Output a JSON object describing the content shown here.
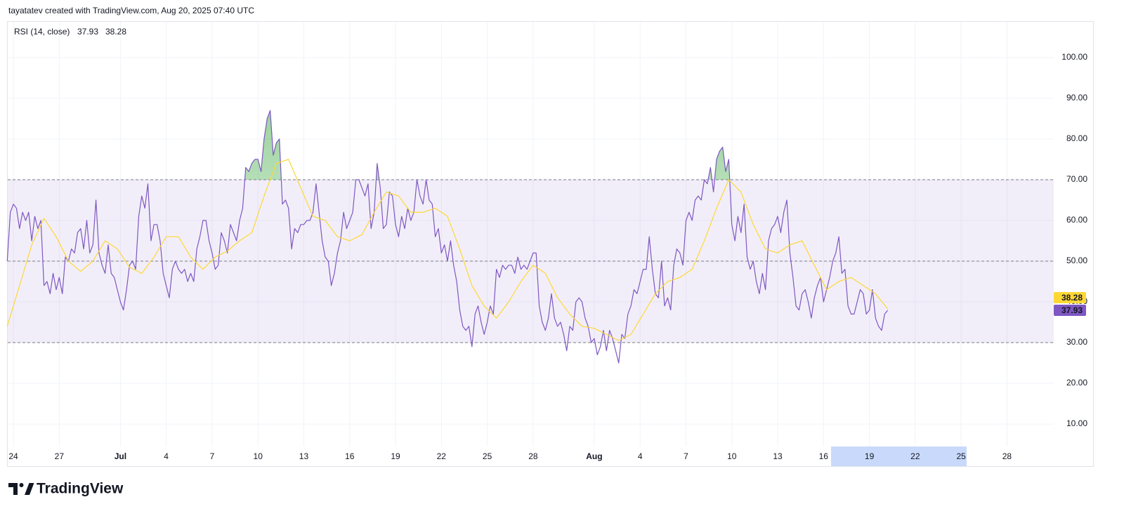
{
  "header": "tayatatev created with TradingView.com, Aug 20, 2025 07:40 UTC",
  "brand": "TradingView",
  "chart_data": {
    "type": "line",
    "indicator": "RSI (14, close)",
    "x": [
      23.6,
      23.8,
      24,
      24.2,
      24.4,
      24.6,
      24.8,
      25,
      25.2,
      25.4,
      25.6,
      25.8,
      26,
      26.2,
      26.4,
      26.6,
      26.8,
      27,
      27.2,
      27.4,
      27.6,
      27.8,
      28,
      28.2,
      28.4,
      28.6,
      28.8,
      29,
      29.2,
      29.4,
      29.6,
      29.8,
      30,
      30.2,
      30.4,
      30.6,
      30.8,
      31,
      31.2,
      31.4,
      31.6,
      31.8,
      32,
      32.2,
      32.4,
      32.6,
      32.8,
      33,
      33.2,
      33.4,
      33.6,
      33.8,
      34,
      34.2,
      34.4,
      34.6,
      34.8,
      35,
      35.2,
      35.4,
      35.6,
      35.8,
      36,
      36.2,
      36.4,
      36.6,
      36.8,
      37,
      37.2,
      37.4,
      37.6,
      37.8,
      38,
      38.2,
      38.4,
      38.6,
      38.8,
      39,
      39.2,
      39.4,
      39.6,
      39.8,
      40,
      40.2,
      40.4,
      40.6,
      40.8,
      41,
      41.2,
      41.4,
      41.6,
      41.8,
      42,
      42.2,
      42.4,
      42.6,
      42.8,
      43,
      43.2,
      43.4,
      43.6,
      43.8,
      44,
      44.2,
      44.4,
      44.6,
      44.8,
      45,
      45.2,
      45.4,
      45.6,
      45.8,
      46,
      46.2,
      46.4,
      46.6,
      46.8,
      47,
      47.2,
      47.4,
      47.6,
      47.8,
      48,
      48.2,
      48.4,
      48.6,
      48.8,
      49,
      49.2,
      49.4,
      49.6,
      49.8,
      50,
      50.2,
      50.4,
      50.6,
      50.8,
      51,
      51.2,
      51.4,
      51.6,
      51.8,
      52,
      52.2,
      52.4,
      52.6,
      52.8,
      53,
      53.2,
      53.4,
      53.6,
      53.8,
      54,
      54.2,
      54.4,
      54.6,
      54.8,
      55,
      55.2,
      55.4,
      55.6,
      55.8,
      56,
      56.2,
      56.4,
      56.6,
      56.8,
      57,
      57.2,
      57.4,
      57.6,
      57.8,
      58,
      58.2,
      58.4,
      58.6,
      58.8,
      59,
      59.2,
      59.4,
      59.6,
      59.8,
      60,
      60.2,
      60.4,
      60.6,
      60.8,
      61,
      61.2,
      61.4,
      61.6,
      61.8,
      62,
      62.2,
      62.4,
      62.6,
      62.8,
      63,
      63.2,
      63.4,
      63.6,
      63.8,
      64,
      64.2,
      64.4,
      64.6,
      64.8,
      65,
      65.2,
      65.4,
      65.6,
      65.8,
      66,
      66.2,
      66.4,
      66.6,
      66.8,
      67,
      67.2,
      67.4,
      67.6,
      67.8,
      68,
      68.2,
      68.4,
      68.6,
      68.8,
      69,
      69.2,
      69.4,
      69.6,
      69.8,
      70,
      70.2,
      70.4,
      70.6,
      70.8,
      71,
      71.2,
      71.4,
      71.6,
      71.8,
      72,
      72.2,
      72.4,
      72.6,
      72.8,
      73,
      73.2,
      73.4,
      73.6,
      73.8,
      74,
      74.2,
      74.4,
      74.6,
      74.8,
      75,
      75.2,
      75.4,
      75.6,
      75.8,
      76,
      76.2,
      76.4,
      76.6,
      76.8,
      77,
      77.2,
      77.4,
      77.6,
      77.8,
      78,
      78.2,
      78.4,
      78.6,
      78.8,
      79,
      79.2,
      79.4,
      79.6,
      79.8,
      80,
      80.2,
      80.4,
      80.6,
      80.8,
      81,
      81.2
    ],
    "series": [
      {
        "name": "RSI (14, close)",
        "color": "#7e57c2",
        "values": [
          50,
          62,
          64,
          63,
          58,
          62,
          60,
          62,
          55,
          61,
          58,
          60,
          44,
          45,
          42,
          47,
          43,
          46,
          42,
          51,
          50,
          53,
          52,
          57,
          58,
          53,
          60,
          52,
          54,
          65,
          52,
          49,
          47,
          54,
          47,
          46,
          43,
          40,
          38,
          43,
          49,
          50,
          48,
          61,
          66,
          63,
          69,
          55,
          59,
          59,
          55,
          47,
          44,
          41,
          48,
          50,
          48,
          47,
          48,
          45,
          47,
          45,
          53,
          56,
          60,
          60,
          55,
          52,
          48,
          49,
          57,
          55,
          52,
          59,
          57,
          55,
          60,
          63,
          73,
          72,
          74,
          75,
          75,
          72,
          80,
          85,
          87,
          76,
          79,
          80,
          64,
          65,
          63,
          53,
          58,
          57,
          59,
          59,
          60,
          60,
          62,
          69,
          62,
          55,
          51,
          50,
          44,
          47,
          52,
          55,
          62,
          58,
          60,
          62,
          70,
          70,
          68,
          66,
          69,
          58,
          62,
          74,
          68,
          58,
          59,
          67,
          66,
          59,
          56,
          61,
          58,
          63,
          60,
          62,
          70,
          66,
          64,
          70,
          65,
          64,
          56,
          58,
          52,
          54,
          50,
          55,
          49,
          45,
          38,
          34,
          33,
          34,
          29,
          37,
          39,
          35,
          32,
          35,
          39,
          37,
          48,
          46,
          49,
          48,
          49,
          49,
          47,
          51,
          48,
          49,
          48,
          50,
          52,
          52,
          39,
          35,
          33,
          36,
          42,
          36,
          34,
          35,
          32,
          28,
          34,
          33,
          40,
          41,
          40,
          36,
          34,
          30,
          31,
          27,
          29,
          33,
          28,
          33,
          31,
          28,
          25,
          32,
          31,
          37,
          39,
          43,
          42,
          45,
          48,
          48,
          56,
          48,
          42,
          41,
          50,
          39,
          41,
          38,
          49,
          53,
          52,
          49,
          60,
          62,
          60,
          65,
          66,
          65,
          70,
          69,
          73,
          67,
          75,
          77,
          78,
          72,
          75,
          59,
          55,
          61,
          57,
          64,
          51,
          48,
          50,
          45,
          42,
          47,
          43,
          55,
          58,
          59,
          61,
          57,
          62,
          65,
          52,
          46,
          39,
          38,
          42,
          43,
          40,
          36,
          41,
          44,
          46,
          40,
          43,
          46,
          50,
          52,
          56,
          47,
          48,
          39,
          37,
          37,
          40,
          43,
          42,
          37,
          38,
          43,
          36,
          34,
          33,
          37,
          37.93
        ]
      },
      {
        "color": "#fdd835",
        "x": [
          23.6,
          24.4,
          25.2,
          26,
          26.8,
          27.6,
          28.4,
          29.2,
          30,
          30.8,
          31.6,
          32.4,
          33.2,
          34,
          34.8,
          35.6,
          36.4,
          37.2,
          38,
          38.8,
          39.6,
          40.4,
          41.2,
          42,
          42.8,
          43.6,
          44.4,
          45.2,
          46,
          46.8,
          47.6,
          48.4,
          49.2,
          50,
          50.8,
          51.6,
          52.4,
          53.2,
          54,
          54.8,
          55.6,
          56.4,
          57.2,
          58,
          58.8,
          59.6,
          60.4,
          61.2,
          62,
          62.8,
          63.6,
          64.4,
          65.2,
          66,
          66.8,
          67.6,
          68.4,
          69.2,
          70,
          70.8,
          71.6,
          72.4,
          73.2,
          74,
          74.8,
          75.6,
          76.4,
          77.2,
          78,
          78.8,
          79.6,
          80.4,
          81.2
        ],
        "values": [
          34,
          44,
          54,
          60.5,
          56,
          50,
          47.5,
          50,
          55,
          53,
          48.5,
          47,
          51,
          56,
          56,
          51,
          48,
          51,
          52.5,
          55,
          57,
          66,
          74,
          75,
          68,
          61,
          60,
          56,
          55,
          56.5,
          62,
          67,
          66,
          62,
          62,
          63,
          61,
          53,
          44,
          39,
          36,
          40,
          45,
          49,
          47,
          41,
          37,
          34,
          33.5,
          32,
          30.5,
          32,
          37,
          42,
          45,
          46,
          48,
          55,
          63,
          70,
          67,
          59,
          53,
          52,
          54,
          55,
          49,
          43,
          45,
          46,
          44,
          42,
          38.28
        ]
      }
    ],
    "band": [
      30,
      70
    ],
    "midline": 50,
    "band_color": "#7e57c2",
    "overbought_color": "#4caf50",
    "xlim": [
      23.63,
      92.06
    ],
    "xticks": [
      24,
      27,
      {
        "value": 31,
        "label": "Jul"
      },
      {
        "value": 34,
        "label": "4"
      },
      {
        "value": 37,
        "label": "7"
      },
      {
        "value": 40,
        "label": "10"
      },
      {
        "value": 43,
        "label": "13"
      },
      {
        "value": 46,
        "label": "16"
      },
      {
        "value": 49,
        "label": "19"
      },
      {
        "value": 52,
        "label": "22"
      },
      {
        "value": 55,
        "label": "25"
      },
      {
        "value": 58,
        "label": "28"
      },
      {
        "value": 62,
        "label": "Aug"
      },
      {
        "value": 65,
        "label": "4"
      },
      {
        "value": 68,
        "label": "7"
      },
      {
        "value": 71,
        "label": "10"
      },
      {
        "value": 74,
        "label": "13"
      },
      {
        "value": 77,
        "label": "16"
      },
      {
        "value": 80,
        "label": "19"
      },
      {
        "value": 83,
        "label": "22"
      },
      {
        "value": 86,
        "label": "25"
      },
      {
        "value": 89,
        "label": "28"
      }
    ],
    "ylim": [
      4.48,
      108.97
    ],
    "yticks": [
      {
        "value": 10,
        "label": "10.00"
      },
      {
        "value": 20,
        "label": "20.00"
      },
      {
        "value": 30,
        "label": "30.00"
      },
      {
        "value": 40,
        "label": "40.00"
      },
      {
        "value": 50,
        "label": "50.00"
      },
      {
        "value": 60,
        "label": "60.00"
      },
      {
        "value": 70,
        "label": "70.00"
      },
      {
        "value": 80,
        "label": "80.00"
      },
      {
        "value": 90,
        "label": "90.00"
      },
      {
        "value": 100,
        "label": "100.00"
      }
    ],
    "grid": true
  }
}
